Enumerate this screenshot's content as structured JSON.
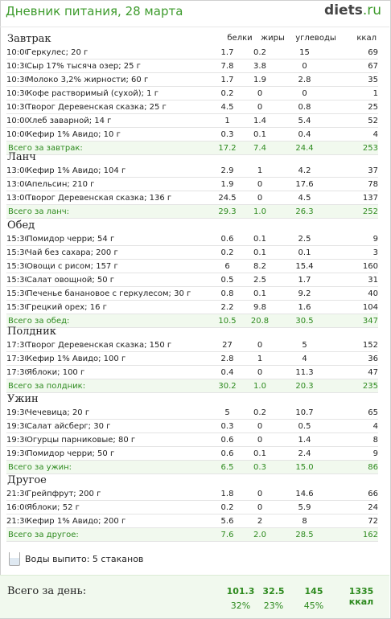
{
  "header": {
    "title": "Дневник питания, 28 марта",
    "logo_main": "diets",
    "logo_tld": ".ru"
  },
  "columns": [
    "белки",
    "жиры",
    "углеводы",
    "ккал"
  ],
  "meals": [
    {
      "name": "Завтрак",
      "items": [
        [
          "10:00",
          "Геркулес; 20 г",
          "1.7",
          "0.2",
          "15",
          "69"
        ],
        [
          "10:30",
          "Сыр 17% тысяча озер; 25 г",
          "7.8",
          "3.8",
          "0",
          "67"
        ],
        [
          "10:30",
          "Молоко 3,2% жирности; 60 г",
          "1.7",
          "1.9",
          "2.8",
          "35"
        ],
        [
          "10:30",
          "Кофе растворимый (сухой); 1 г",
          "0.2",
          "0",
          "0",
          "1"
        ],
        [
          "10:30",
          "Творог Деревенская сказка; 25 г",
          "4.5",
          "0",
          "0.8",
          "25"
        ],
        [
          "10:00",
          "Хлеб заварной; 14 г",
          "1",
          "1.4",
          "5.4",
          "52"
        ],
        [
          "10:00",
          "Кефир 1% Авидо; 10 г",
          "0.3",
          "0.1",
          "0.4",
          "4"
        ]
      ],
      "total": [
        "Всего за завтрак:",
        "17.2",
        "7.4",
        "24.4",
        "253"
      ]
    },
    {
      "name": "Ланч",
      "items": [
        [
          "13:00",
          "Кефир 1% Авидо; 104 г",
          "2.9",
          "1",
          "4.2",
          "37"
        ],
        [
          "13:00",
          "Апельсин; 210 г",
          "1.9",
          "0",
          "17.6",
          "78"
        ],
        [
          "13:00",
          "Творог Деревенская сказка; 136 г",
          "24.5",
          "0",
          "4.5",
          "137"
        ]
      ],
      "total": [
        "Всего за ланч:",
        "29.3",
        "1.0",
        "26.3",
        "252"
      ]
    },
    {
      "name": "Обед",
      "items": [
        [
          "15:30",
          "Помидор черри; 54 г",
          "0.6",
          "0.1",
          "2.5",
          "9"
        ],
        [
          "15:30",
          "Чай без сахара; 200 г",
          "0.2",
          "0.1",
          "0.1",
          "3"
        ],
        [
          "15:30",
          "Овощи с рисом; 157 г",
          "6",
          "8.2",
          "15.4",
          "160"
        ],
        [
          "15:30",
          "Салат овощной; 50 г",
          "0.5",
          "2.5",
          "1.7",
          "31"
        ],
        [
          "15:30",
          "Печенье банановое с геркулесом; 30 г",
          "0.8",
          "0.1",
          "9.2",
          "40"
        ],
        [
          "15:30",
          "Грецкий орех; 16 г",
          "2.2",
          "9.8",
          "1.6",
          "104"
        ]
      ],
      "total": [
        "Всего за обед:",
        "10.5",
        "20.8",
        "30.5",
        "347"
      ]
    },
    {
      "name": "Полдник",
      "items": [
        [
          "17:30",
          "Творог Деревенская сказка; 150 г",
          "27",
          "0",
          "5",
          "152"
        ],
        [
          "17:30",
          "Кефир 1% Авидо; 100 г",
          "2.8",
          "1",
          "4",
          "36"
        ],
        [
          "17:30",
          "Яблоки; 100 г",
          "0.4",
          "0",
          "11.3",
          "47"
        ]
      ],
      "total": [
        "Всего за полдник:",
        "30.2",
        "1.0",
        "20.3",
        "235"
      ]
    },
    {
      "name": "Ужин",
      "items": [
        [
          "19:30",
          "Чечевица; 20 г",
          "5",
          "0.2",
          "10.7",
          "65"
        ],
        [
          "19:30",
          "Салат айсберг; 30 г",
          "0.3",
          "0",
          "0.5",
          "4"
        ],
        [
          "19:30",
          "Огурцы парниковые; 80 г",
          "0.6",
          "0",
          "1.4",
          "8"
        ],
        [
          "19:30",
          "Помидор черри; 50 г",
          "0.6",
          "0.1",
          "2.4",
          "9"
        ]
      ],
      "total": [
        "Всего за ужин:",
        "6.5",
        "0.3",
        "15.0",
        "86"
      ]
    },
    {
      "name": "Другое",
      "items": [
        [
          "21:30",
          "Грейпфрут; 200 г",
          "1.8",
          "0",
          "14.6",
          "66"
        ],
        [
          "16:00",
          "Яблоки; 52 г",
          "0.2",
          "0",
          "5.9",
          "24"
        ],
        [
          "21:30",
          "Кефир 1% Авидо; 200 г",
          "5.6",
          "2",
          "8",
          "72"
        ]
      ],
      "total": [
        "Всего за другое:",
        "7.6",
        "2.0",
        "28.5",
        "162"
      ]
    }
  ],
  "water": {
    "label": "Воды выпито:",
    "value": "5 стаканов"
  },
  "day_total": {
    "label": "Всего за день:",
    "values": [
      "101.3",
      "32.5",
      "145",
      "1335 ккал"
    ],
    "percents": [
      "32%",
      "23%",
      "45%"
    ]
  },
  "colors": {
    "accent": "#3d9b2c",
    "total_bg": "#f1f9ee"
  }
}
